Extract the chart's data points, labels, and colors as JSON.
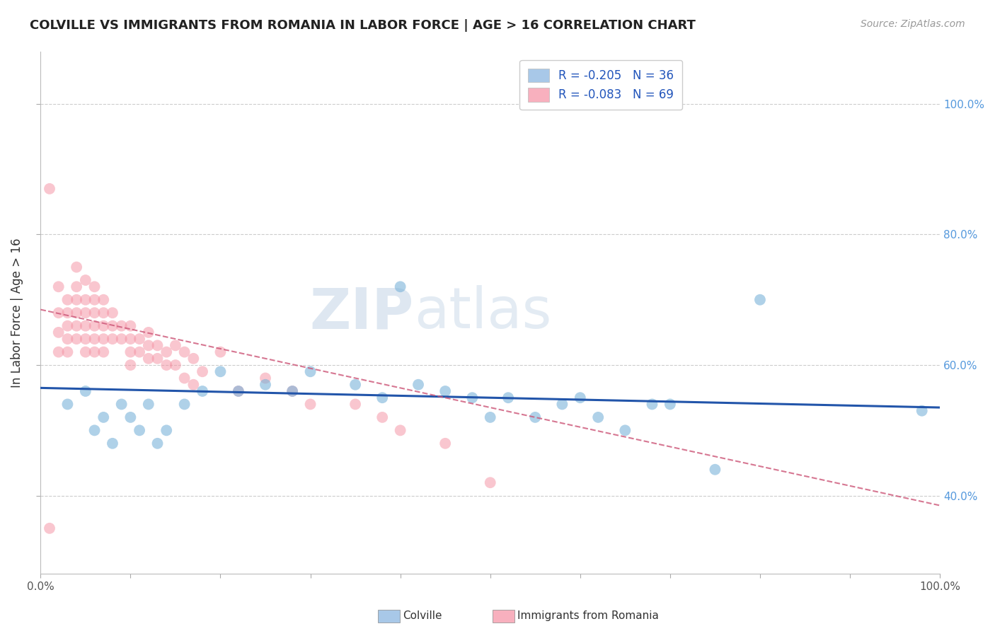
{
  "title": "COLVILLE VS IMMIGRANTS FROM ROMANIA IN LABOR FORCE | AGE > 16 CORRELATION CHART",
  "source_text": "Source: ZipAtlas.com",
  "ylabel": "In Labor Force | Age > 16",
  "xlim": [
    0.0,
    1.0
  ],
  "ylim": [
    0.28,
    1.08
  ],
  "x_ticks": [
    0.0,
    0.1,
    0.2,
    0.3,
    0.4,
    0.5,
    0.6,
    0.7,
    0.8,
    0.9,
    1.0
  ],
  "y_ticks": [
    0.4,
    0.6,
    0.8,
    1.0
  ],
  "y_tick_labels": [
    "40.0%",
    "60.0%",
    "80.0%",
    "100.0%"
  ],
  "blue_color": "#7ab3d9",
  "pink_color": "#f48fa0",
  "blue_line_color": "#2255aa",
  "pink_line_color": "#cc5577",
  "watermark": "ZIPatlas",
  "background_color": "#ffffff",
  "grid_color": "#cccccc",
  "title_fontsize": 13,
  "source_fontsize": 10,
  "blue_legend_color": "#a8c8e8",
  "pink_legend_color": "#f8b0be",
  "blue_scatter_x": [
    0.03,
    0.05,
    0.06,
    0.07,
    0.08,
    0.09,
    0.1,
    0.11,
    0.12,
    0.13,
    0.14,
    0.16,
    0.18,
    0.2,
    0.22,
    0.25,
    0.28,
    0.3,
    0.35,
    0.38,
    0.4,
    0.42,
    0.45,
    0.48,
    0.5,
    0.52,
    0.55,
    0.58,
    0.6,
    0.62,
    0.65,
    0.68,
    0.7,
    0.75,
    0.8,
    0.98
  ],
  "blue_scatter_y": [
    0.54,
    0.56,
    0.5,
    0.52,
    0.48,
    0.54,
    0.52,
    0.5,
    0.54,
    0.48,
    0.5,
    0.54,
    0.56,
    0.59,
    0.56,
    0.57,
    0.56,
    0.59,
    0.57,
    0.55,
    0.72,
    0.57,
    0.56,
    0.55,
    0.52,
    0.55,
    0.52,
    0.54,
    0.55,
    0.52,
    0.5,
    0.54,
    0.54,
    0.44,
    0.7,
    0.53
  ],
  "pink_scatter_x": [
    0.01,
    0.01,
    0.02,
    0.02,
    0.02,
    0.02,
    0.03,
    0.03,
    0.03,
    0.03,
    0.03,
    0.04,
    0.04,
    0.04,
    0.04,
    0.04,
    0.04,
    0.05,
    0.05,
    0.05,
    0.05,
    0.05,
    0.05,
    0.06,
    0.06,
    0.06,
    0.06,
    0.06,
    0.06,
    0.07,
    0.07,
    0.07,
    0.07,
    0.07,
    0.08,
    0.08,
    0.08,
    0.09,
    0.09,
    0.1,
    0.1,
    0.1,
    0.1,
    0.11,
    0.11,
    0.12,
    0.12,
    0.12,
    0.13,
    0.13,
    0.14,
    0.14,
    0.15,
    0.15,
    0.16,
    0.16,
    0.17,
    0.17,
    0.18,
    0.2,
    0.22,
    0.25,
    0.28,
    0.3,
    0.35,
    0.38,
    0.4,
    0.45,
    0.5
  ],
  "pink_scatter_y": [
    0.87,
    0.35,
    0.72,
    0.68,
    0.65,
    0.62,
    0.7,
    0.68,
    0.66,
    0.64,
    0.62,
    0.75,
    0.72,
    0.7,
    0.68,
    0.66,
    0.64,
    0.73,
    0.7,
    0.68,
    0.66,
    0.64,
    0.62,
    0.72,
    0.7,
    0.68,
    0.66,
    0.64,
    0.62,
    0.7,
    0.68,
    0.66,
    0.64,
    0.62,
    0.68,
    0.66,
    0.64,
    0.66,
    0.64,
    0.66,
    0.64,
    0.62,
    0.6,
    0.64,
    0.62,
    0.65,
    0.63,
    0.61,
    0.63,
    0.61,
    0.62,
    0.6,
    0.63,
    0.6,
    0.62,
    0.58,
    0.61,
    0.57,
    0.59,
    0.62,
    0.56,
    0.58,
    0.56,
    0.54,
    0.54,
    0.52,
    0.5,
    0.48,
    0.42
  ],
  "blue_line_x0": 0.0,
  "blue_line_x1": 1.0,
  "blue_line_y0": 0.565,
  "blue_line_y1": 0.535,
  "pink_line_x0": 0.0,
  "pink_line_x1": 1.0,
  "pink_line_y0": 0.685,
  "pink_line_y1": 0.385
}
